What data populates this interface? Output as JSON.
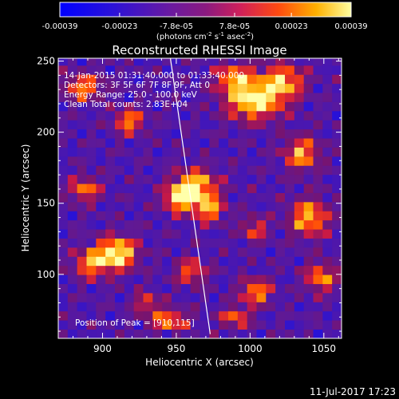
{
  "chart_data": {
    "type": "heatmap",
    "title": "Reconstructed RHESSI Image",
    "xlabel": "Heliocentric X (arcsec)",
    "ylabel": "Heliocentric Y (arcsec)",
    "xlim": [
      870,
      1062
    ],
    "ylim": [
      55,
      252
    ],
    "xticks": [
      900,
      950,
      1000,
      1050
    ],
    "yticks": [
      100,
      150,
      200,
      250
    ],
    "colorbar": {
      "min": -0.00039,
      "max": 0.00039,
      "ticks": [
        "-0.00039",
        "-0.00023",
        "-7.8e-05",
        "7.8e-05",
        "0.00023",
        "0.00039"
      ],
      "tick_values": [
        -0.00039,
        -0.00023,
        -7.8e-05,
        7.8e-05,
        0.00023,
        0.00039
      ],
      "units_prefix": "(photons cm",
      "units_exp1": "-2",
      "units_mid": " s",
      "units_exp2": "-1",
      "units_mid2": " asec",
      "units_exp3": "-2",
      "units_suffix": ")"
    },
    "annotations": [
      "14-Jan-2015 01:31:40.000 to 01:33:40.000",
      "Detectors: 3F 5F 6F 7F 8F 9F, Att 0",
      "Energy Range: 25.0 - 100.0 keV",
      "Clean     Total counts: 2.83E+04"
    ],
    "peak_label": "Position of Peak = [910,115]",
    "limb_line": {
      "x": [
        946,
        973
      ],
      "y": [
        252,
        58
      ]
    },
    "sources": [
      {
        "x": 1003,
        "y": 222,
        "sx": 13,
        "sy": 9,
        "amp": 1.05
      },
      {
        "x": 1022,
        "y": 236,
        "sx": 10,
        "sy": 8,
        "amp": 0.85
      },
      {
        "x": 990,
        "y": 238,
        "sx": 9,
        "sy": 7,
        "amp": 0.8
      },
      {
        "x": 963,
        "y": 162,
        "sx": 10,
        "sy": 8,
        "amp": 1.0
      },
      {
        "x": 952,
        "y": 153,
        "sx": 7,
        "sy": 6,
        "amp": 0.9
      },
      {
        "x": 972,
        "y": 146,
        "sx": 7,
        "sy": 6,
        "amp": 0.8
      },
      {
        "x": 910,
        "y": 115,
        "sx": 9,
        "sy": 8,
        "amp": 1.1
      },
      {
        "x": 892,
        "y": 108,
        "sx": 8,
        "sy": 7,
        "amp": 0.75
      },
      {
        "x": 888,
        "y": 160,
        "sx": 7,
        "sy": 6,
        "amp": 0.7
      },
      {
        "x": 887,
        "y": 232,
        "sx": 9,
        "sy": 6,
        "amp": 0.75
      },
      {
        "x": 918,
        "y": 208,
        "sx": 7,
        "sy": 6,
        "amp": 0.75
      },
      {
        "x": 1035,
        "y": 185,
        "sx": 8,
        "sy": 8,
        "amp": 0.8
      },
      {
        "x": 1040,
        "y": 140,
        "sx": 9,
        "sy": 9,
        "amp": 0.85
      },
      {
        "x": 1048,
        "y": 98,
        "sx": 7,
        "sy": 7,
        "amp": 0.75
      },
      {
        "x": 1003,
        "y": 132,
        "sx": 6,
        "sy": 6,
        "amp": 0.55
      },
      {
        "x": 1004,
        "y": 88,
        "sx": 7,
        "sy": 6,
        "amp": 0.8
      },
      {
        "x": 960,
        "y": 102,
        "sx": 7,
        "sy": 6,
        "amp": 0.65
      },
      {
        "x": 945,
        "y": 68,
        "sx": 9,
        "sy": 5,
        "amp": 0.75
      },
      {
        "x": 990,
        "y": 70,
        "sx": 7,
        "sy": 5,
        "amp": 0.65
      },
      {
        "x": 930,
        "y": 80,
        "sx": 6,
        "sy": 5,
        "amp": 0.55
      }
    ]
  },
  "footer": {
    "timestamp": "11-Jul-2017 17:23"
  }
}
